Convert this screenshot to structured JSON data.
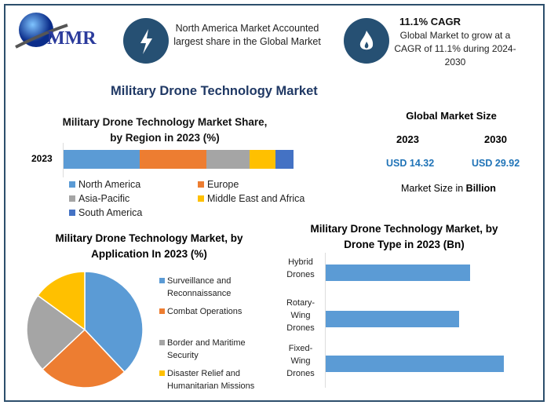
{
  "logo": {
    "text": "MMR"
  },
  "header": {
    "highlight1": {
      "icon": "lightning-icon",
      "text": "North America Market Accounted largest share in the Global Market"
    },
    "highlight2": {
      "icon": "flame-icon",
      "title": "11.1% CAGR",
      "text": "Global Market to grow at a CAGR of 11.1% during 2024-2030"
    }
  },
  "main_title": "Military Drone Technology Market",
  "market_size": {
    "title": "Global Market Size",
    "year1": "2023",
    "year2": "2030",
    "value1": "USD 14.32",
    "value2": "USD 29.92",
    "note_prefix": "Market Size in ",
    "note_bold": "Billion"
  },
  "colors": {
    "accent": "#265073",
    "value": "#1f73b7"
  },
  "chart_data": [
    {
      "type": "bar",
      "orientation": "horizontal-stacked",
      "title": "Military Drone Technology Market Share, by Region in 2023 (%)",
      "categories": [
        "2023"
      ],
      "series": [
        {
          "name": "North America",
          "values": [
            33
          ],
          "color": "#5b9bd5"
        },
        {
          "name": "Europe",
          "values": [
            29
          ],
          "color": "#ed7d31"
        },
        {
          "name": "Asia-Pacific",
          "values": [
            19
          ],
          "color": "#a5a5a5"
        },
        {
          "name": "Middle East and Africa",
          "values": [
            11
          ],
          "color": "#ffc000"
        },
        {
          "name": "South America",
          "values": [
            8
          ],
          "color": "#4472c4"
        }
      ],
      "legend": "bottom"
    },
    {
      "type": "pie",
      "title": "Military Drone Technology Market, by Application In 2023 (%)",
      "slices": [
        {
          "label": "Surveillance and Reconnaissance",
          "value": 38,
          "color": "#5b9bd5"
        },
        {
          "label": "Combat Operations",
          "value": 25,
          "color": "#ed7d31"
        },
        {
          "label": "Border and Maritime Security",
          "value": 22,
          "color": "#a5a5a5"
        },
        {
          "label": "Disaster Relief and Humanitarian Missions",
          "value": 15,
          "color": "#ffc000"
        }
      ],
      "legend": "right"
    },
    {
      "type": "bar",
      "orientation": "horizontal",
      "title": "Military Drone Technology Market, by Drone Type in 2023 (Bn)",
      "categories": [
        "Hybrid Drones",
        "Rotary-Wing Drones",
        "Fixed-Wing Drones"
      ],
      "values": [
        3.25,
        3.0,
        4.0
      ],
      "xlim": [
        0,
        4.2
      ],
      "color": "#5b9bd5"
    }
  ]
}
